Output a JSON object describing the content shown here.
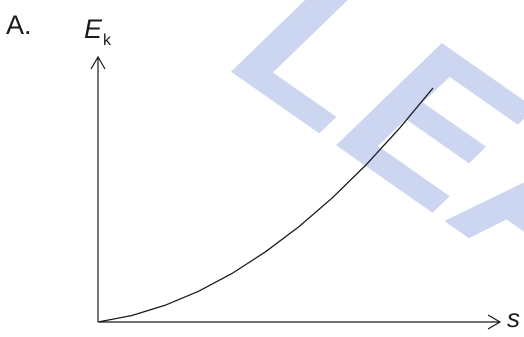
{
  "option_label": "A.",
  "chart_data": {
    "type": "line",
    "title": "",
    "xlabel": "s",
    "ylabel_main": "E",
    "ylabel_sub": "k",
    "grid": false,
    "ticks": "none",
    "watermark_text": "LEA",
    "colors": {
      "axis": "#1a1a1a",
      "curve": "#1a1a1a",
      "watermark": "#ccd6f0"
    },
    "series": [
      {
        "x": [
          0,
          0.1,
          0.2,
          0.3,
          0.4,
          0.5,
          0.6,
          0.7,
          0.8,
          0.9,
          1.0
        ],
        "y": [
          0,
          0.024,
          0.063,
          0.116,
          0.183,
          0.265,
          0.36,
          0.469,
          0.593,
          0.731,
          0.883
        ]
      }
    ]
  }
}
